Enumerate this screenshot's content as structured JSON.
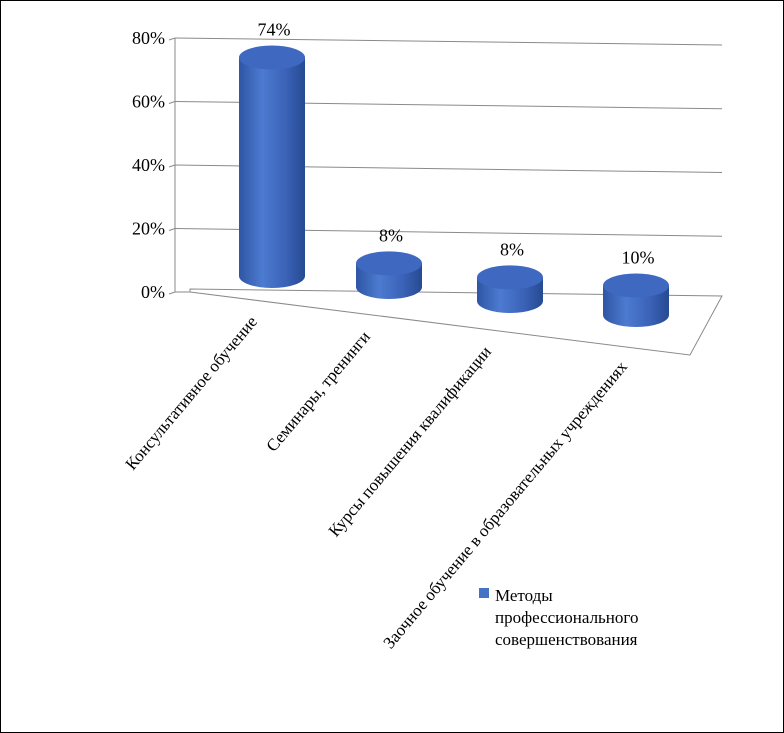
{
  "chart_data": {
    "type": "bar",
    "style": "3d-cylinder",
    "categories": [
      "Консультативное обучение",
      "Семинары, тренинги",
      "Курсы повышения квалификации",
      "Заочное обучение в образовательных учреждениях"
    ],
    "series": [
      {
        "name": "Методы профессионального совершенствования",
        "values": [
          74,
          8,
          8,
          10
        ]
      }
    ],
    "data_labels": [
      "74%",
      "8%",
      "8%",
      "10%"
    ],
    "y_ticks": [
      "0%",
      "20%",
      "40%",
      "60%",
      "80%"
    ],
    "ylim": [
      0,
      80
    ],
    "grid": true,
    "legend_position": "bottom-right",
    "colors": {
      "bar": "#4472c4",
      "bar_dark": "#2f55a4",
      "bar_top": "#3f68c0",
      "grid": "#8a8a8a"
    },
    "legend": {
      "lines": [
        "Методы",
        "профессионального",
        "совершенствования"
      ]
    }
  }
}
